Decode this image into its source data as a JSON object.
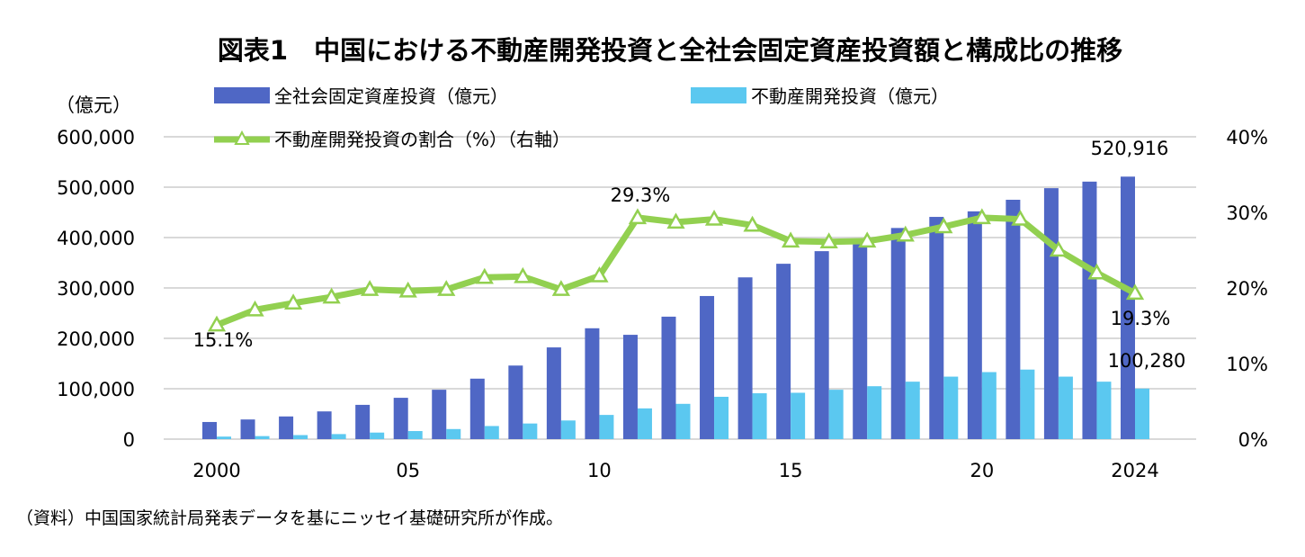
{
  "chart_data": {
    "type": "bar+line",
    "title": "図表1　中国における不動産開発投資と全社会固定資産投資額と構成比の推移",
    "left_axis_unit": "（億元）",
    "left_ylim": [
      0,
      600000
    ],
    "left_ticks": [
      "0",
      "100,000",
      "200,000",
      "300,000",
      "400,000",
      "500,000",
      "600,000"
    ],
    "right_ylim": [
      0,
      40
    ],
    "right_ticks": [
      "0%",
      "10%",
      "20%",
      "30%",
      "40%"
    ],
    "x_tick_labels": [
      {
        "year": 2000,
        "label": "2000"
      },
      {
        "year": 2005,
        "label": "05"
      },
      {
        "year": 2010,
        "label": "10"
      },
      {
        "year": 2015,
        "label": "15"
      },
      {
        "year": 2020,
        "label": "20"
      },
      {
        "year": 2024,
        "label": "2024"
      }
    ],
    "grid": true,
    "legend_position": "top",
    "x": [
      2000,
      2001,
      2002,
      2003,
      2004,
      2005,
      2006,
      2007,
      2008,
      2009,
      2010,
      2011,
      2012,
      2013,
      2014,
      2015,
      2016,
      2017,
      2018,
      2019,
      2020,
      2021,
      2022,
      2023,
      2024
    ],
    "series": [
      {
        "name": "全社会固定資産投資（億元）",
        "type": "bar",
        "axis": "left",
        "color": "#4F67C5",
        "values": [
          34000,
          39000,
          45000,
          55000,
          68000,
          82000,
          98000,
          120000,
          146000,
          182000,
          220000,
          207000,
          243000,
          284000,
          321000,
          348000,
          373000,
          389000,
          419000,
          441000,
          452000,
          475000,
          498000,
          511000,
          520916
        ]
      },
      {
        "name": "不動産開発投資（億元）",
        "type": "bar",
        "axis": "left",
        "color": "#5BC8F0",
        "values": [
          5000,
          6000,
          8000,
          10000,
          13000,
          16000,
          20000,
          26000,
          31000,
          37000,
          48000,
          61000,
          70000,
          84000,
          91000,
          92000,
          98000,
          105000,
          114000,
          124000,
          133000,
          138000,
          124000,
          114000,
          100280
        ]
      },
      {
        "name": "不動産開発投資の割合（%）（右軸）",
        "type": "line",
        "axis": "right",
        "color": "#92D050",
        "values": [
          15.1,
          17.1,
          18.0,
          18.8,
          19.8,
          19.6,
          19.8,
          21.4,
          21.5,
          19.8,
          21.6,
          29.3,
          28.7,
          29.1,
          28.3,
          26.2,
          26.1,
          26.2,
          27.0,
          28.1,
          29.3,
          29.1,
          25.0,
          22.0,
          19.3
        ]
      }
    ],
    "annotations": {
      "line_2000": "15.1%",
      "line_2011": "29.3%",
      "line_2024": "19.3%",
      "total_2024": "520,916",
      "realestate_2024": "100,280"
    },
    "source": "（資料）中国国家統計局発表データを基にニッセイ基礎研究所が作成。"
  }
}
